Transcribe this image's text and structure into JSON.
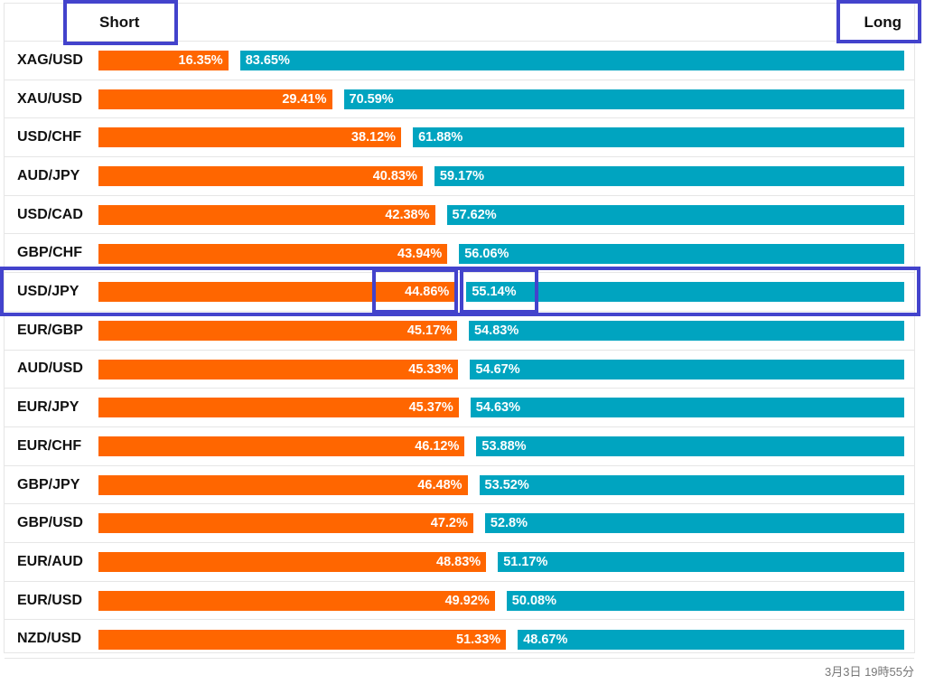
{
  "header": {
    "short_label": "Short",
    "long_label": "Long"
  },
  "chart_data": {
    "type": "bar",
    "stacked": true,
    "orientation": "horizontal",
    "categories": [
      "XAG/USD",
      "XAU/USD",
      "USD/CHF",
      "AUD/JPY",
      "USD/CAD",
      "GBP/CHF",
      "USD/JPY",
      "EUR/GBP",
      "AUD/USD",
      "EUR/JPY",
      "EUR/CHF",
      "GBP/JPY",
      "GBP/USD",
      "EUR/AUD",
      "EUR/USD",
      "NZD/USD"
    ],
    "series": [
      {
        "name": "Short",
        "color": "#ff6600",
        "values": [
          16.35,
          29.41,
          38.12,
          40.83,
          42.38,
          43.94,
          44.86,
          45.17,
          45.33,
          45.37,
          46.12,
          46.48,
          47.2,
          48.83,
          49.92,
          51.33
        ],
        "labels": [
          "16.35%",
          "29.41%",
          "38.12%",
          "40.83%",
          "42.38%",
          "43.94%",
          "44.86%",
          "45.17%",
          "45.33%",
          "45.37%",
          "46.12%",
          "46.48%",
          "47.2%",
          "48.83%",
          "49.92%",
          "51.33%"
        ]
      },
      {
        "name": "Long",
        "color": "#00a4c0",
        "values": [
          83.65,
          70.59,
          61.88,
          59.17,
          57.62,
          56.06,
          55.14,
          54.83,
          54.67,
          54.63,
          53.88,
          53.52,
          52.8,
          51.17,
          50.08,
          48.67
        ],
        "labels": [
          "83.65%",
          "70.59%",
          "61.88%",
          "59.17%",
          "57.62%",
          "56.06%",
          "55.14%",
          "54.83%",
          "54.67%",
          "54.63%",
          "53.88%",
          "53.52%",
          "52.8%",
          "51.17%",
          "50.08%",
          "48.67%"
        ]
      }
    ],
    "highlighted_category": "USD/JPY"
  },
  "footer": {
    "timestamp": "3月3日 19時55分"
  }
}
